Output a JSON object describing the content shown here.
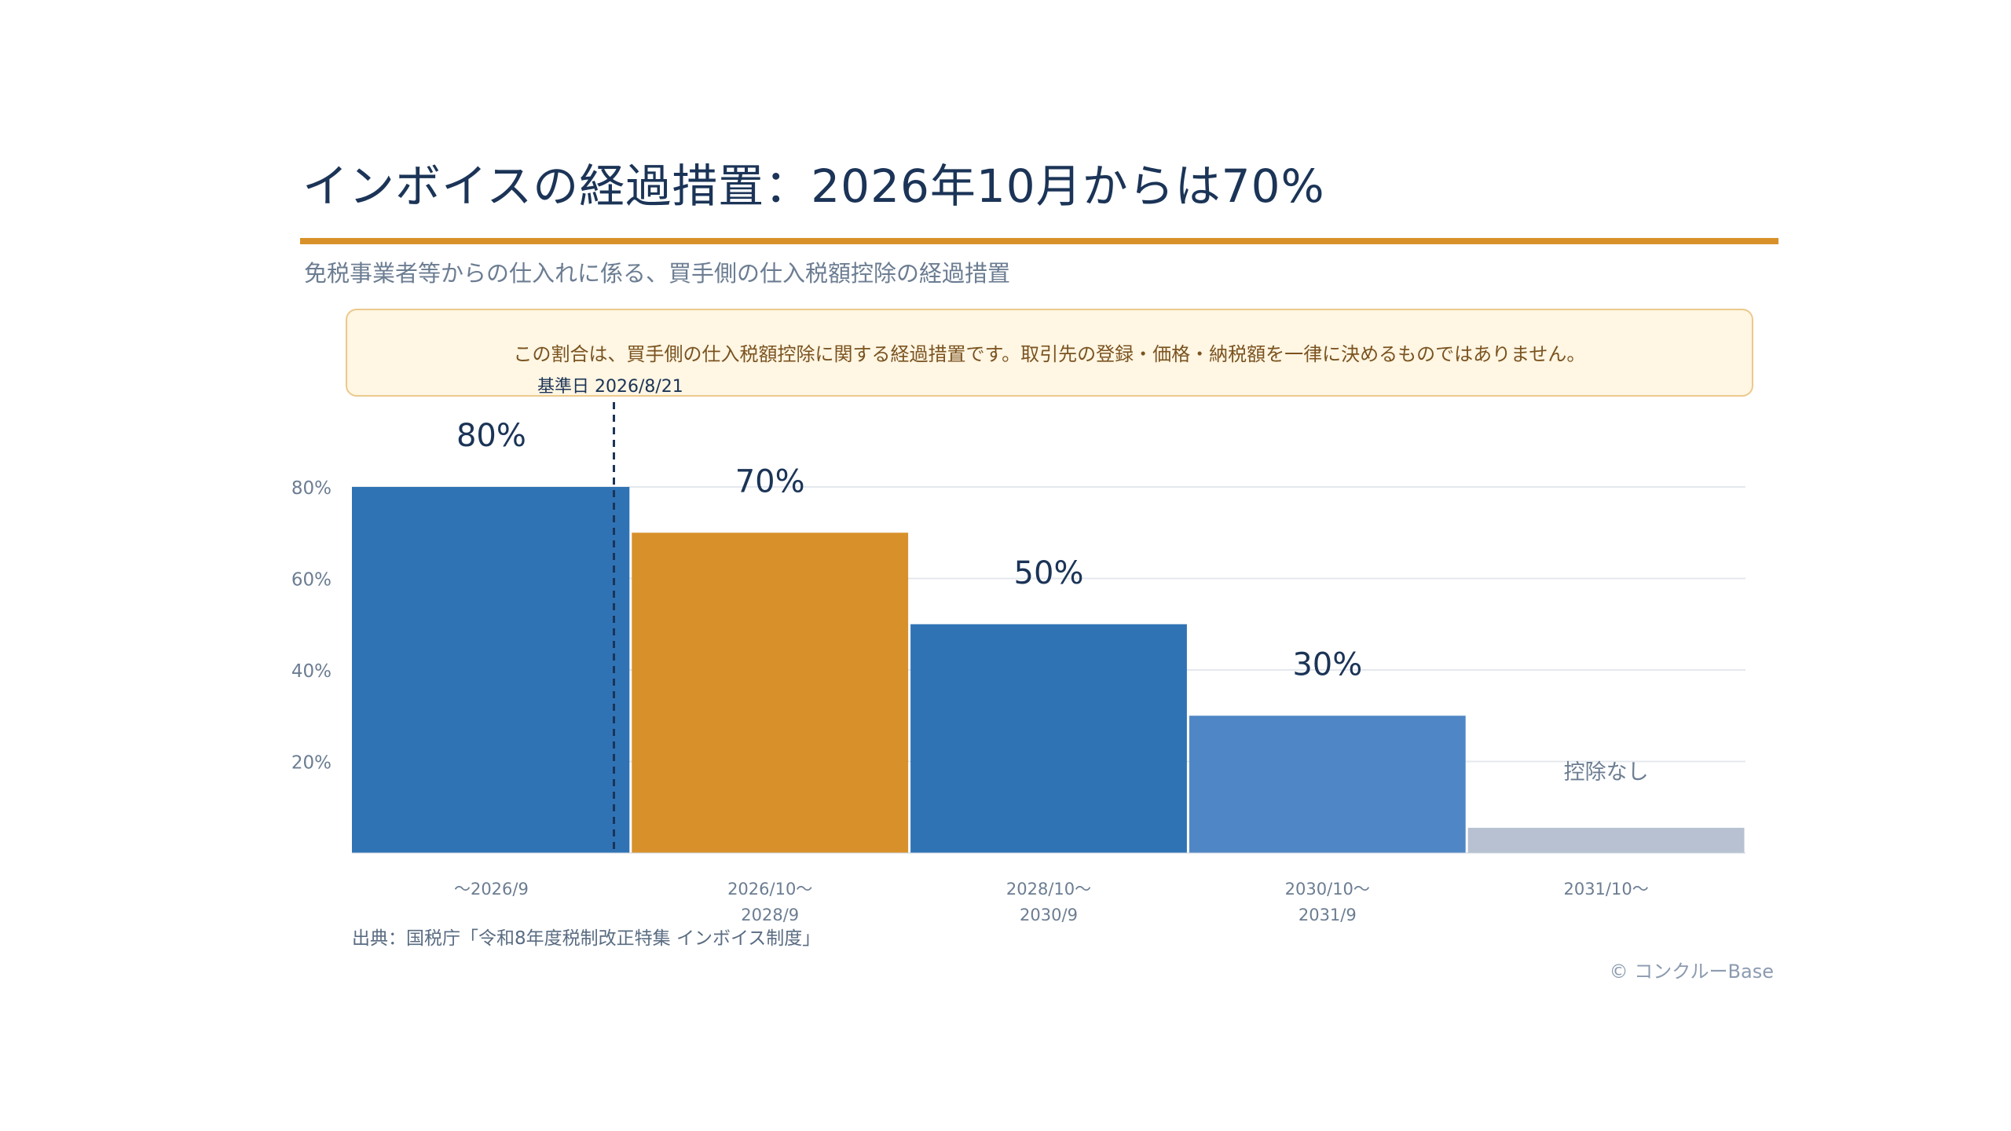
{
  "title": "インボイスの経過措置：2026年10月からは70%",
  "subtitle": "免税事業者等からの仕入れに係る、買手側の仕入税額控除の経過措置",
  "note": "この割合は、買手側の仕入税額控除に関する経過措置です。取引先の登録・価格・納税額を一律に決めるものではありません。",
  "reference_date_label": "基準日 2026/8/21",
  "source": "出典：国税庁「令和8年度税制改正特集 インボイス制度」",
  "copyright": "© コンクルーBase",
  "colors": {
    "accent_orange": "#d8912a",
    "blue_dark": "#2f73b5",
    "blue_light": "#4f87c6",
    "gray": "#b7c1d1",
    "text_dark": "#1b3457"
  },
  "chart_data": {
    "type": "bar",
    "categories": [
      [
        "～2026/9"
      ],
      [
        "2026/10～",
        "2028/9"
      ],
      [
        "2028/10～",
        "2030/9"
      ],
      [
        "2030/10～",
        "2031/9"
      ],
      [
        "2031/10～"
      ]
    ],
    "values": [
      80,
      70,
      50,
      30,
      0
    ],
    "data_labels": [
      "80%",
      "70%",
      "50%",
      "30%",
      "控除なし"
    ],
    "bar_colors": [
      "#2f73b5",
      "#d8912a",
      "#2f73b5",
      "#4f87c6",
      "#b7c1d1"
    ],
    "y_ticks": [
      20,
      40,
      60,
      80
    ],
    "y_tick_labels": [
      "20%",
      "40%",
      "60%",
      "80%"
    ],
    "ylim": [
      0,
      80
    ],
    "grid": true,
    "reference_line": {
      "label": "基準日 2026/8/21",
      "category_index": 0,
      "position_in_category": 0.94
    }
  }
}
